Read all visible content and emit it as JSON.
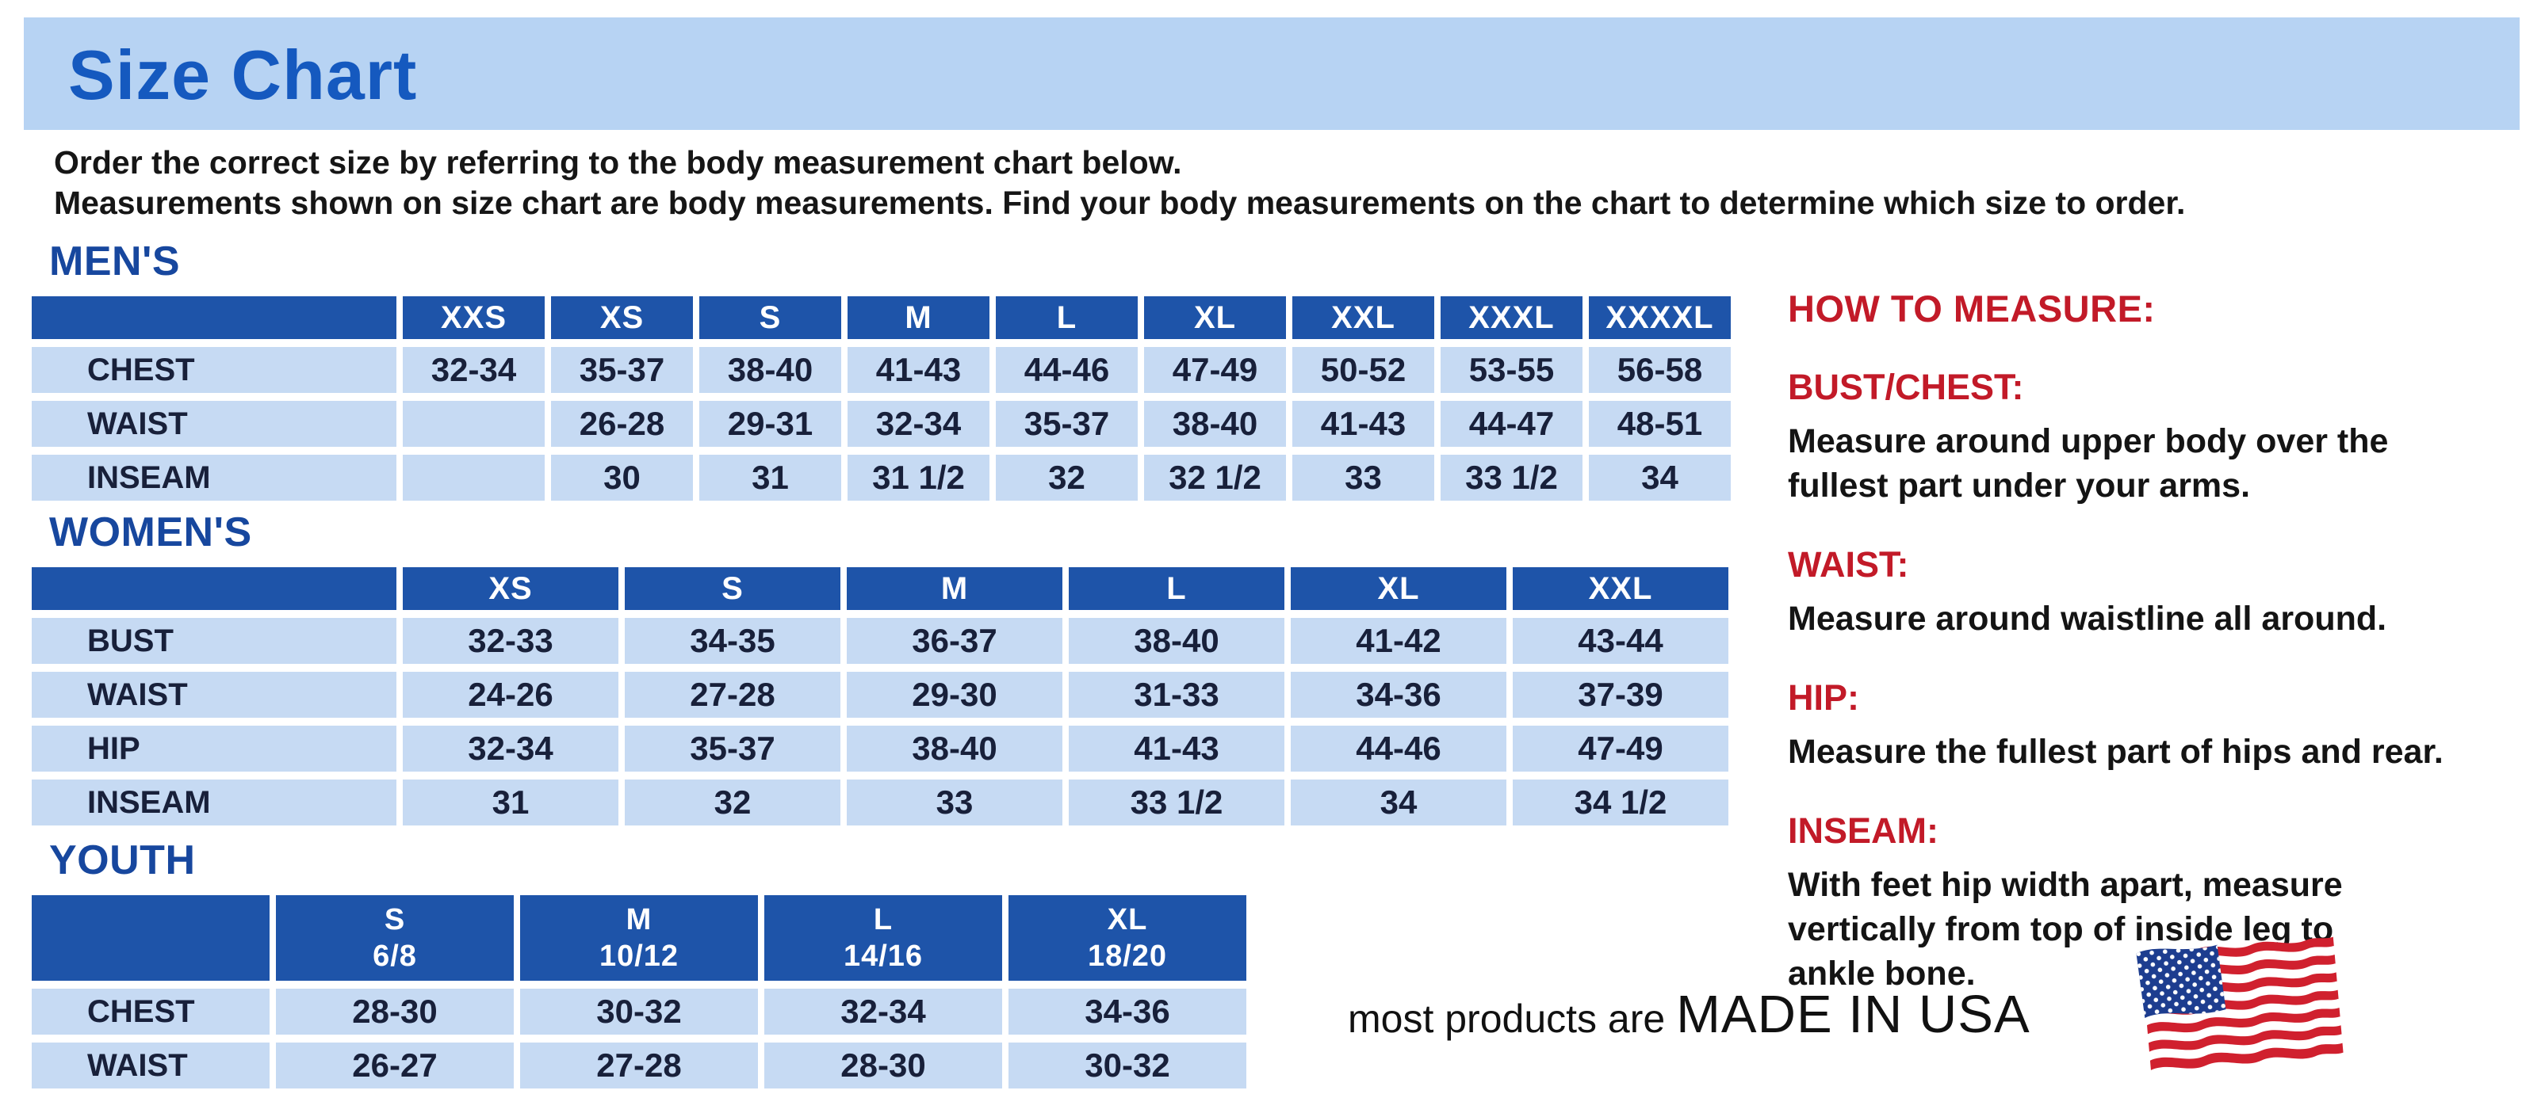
{
  "page": {
    "title": "Size Chart",
    "intro_line1": "Order the correct size by referring to the body measurement chart below.",
    "intro_line2": "Measurements shown on size chart are body measurements.  Find your body measurements on the chart to determine which size to order."
  },
  "colors": {
    "band_background": "#b7d3f3",
    "title_blue": "#1559bf",
    "section_heading_blue": "#17479e",
    "table_header_blue": "#1e54a9",
    "table_cell_blue": "#c6daf3",
    "accent_red": "#c21a28"
  },
  "tables": [
    {
      "heading": "MEN'S",
      "columns": [
        "",
        "XXS",
        "XS",
        "S",
        "M",
        "L",
        "XL",
        "XXL",
        "XXXL",
        "XXXXL"
      ],
      "rows": [
        {
          "label": "CHEST",
          "values": [
            "32-34",
            "35-37",
            "38-40",
            "41-43",
            "44-46",
            "47-49",
            "50-52",
            "53-55",
            "56-58"
          ]
        },
        {
          "label": "WAIST",
          "values": [
            "",
            "26-28",
            "29-31",
            "32-34",
            "35-37",
            "38-40",
            "41-43",
            "44-47",
            "48-51"
          ]
        },
        {
          "label": "INSEAM",
          "values": [
            "",
            "30",
            "31",
            "31 1/2",
            "32",
            "32 1/2",
            "33",
            "33 1/2",
            "34"
          ]
        }
      ]
    },
    {
      "heading": "WOMEN'S",
      "columns": [
        "",
        "XS",
        "S",
        "M",
        "L",
        "XL",
        "XXL"
      ],
      "rows": [
        {
          "label": "BUST",
          "values": [
            "32-33",
            "34-35",
            "36-37",
            "38-40",
            "41-42",
            "43-44"
          ]
        },
        {
          "label": "WAIST",
          "values": [
            "24-26",
            "27-28",
            "29-30",
            "31-33",
            "34-36",
            "37-39"
          ]
        },
        {
          "label": "HIP",
          "values": [
            "32-34",
            "35-37",
            "38-40",
            "41-43",
            "44-46",
            "47-49"
          ]
        },
        {
          "label": "INSEAM",
          "values": [
            "31",
            "32",
            "33",
            "33 1/2",
            "34",
            "34 1/2"
          ]
        }
      ]
    },
    {
      "heading": "YOUTH",
      "columns": [
        "",
        "S\n6/8",
        "M\n10/12",
        "L\n14/16",
        "XL\n18/20"
      ],
      "rows": [
        {
          "label": "CHEST",
          "values": [
            "28-30",
            "30-32",
            "32-34",
            "34-36"
          ]
        },
        {
          "label": "WAIST",
          "values": [
            "26-27",
            "27-28",
            "28-30",
            "30-32"
          ]
        }
      ]
    }
  ],
  "how_to_measure": {
    "heading": "HOW TO MEASURE:",
    "items": [
      {
        "term": "BUST/CHEST:",
        "desc": "Measure around upper body over the\nfullest part under your arms."
      },
      {
        "term": "WAIST:",
        "desc": "Measure around waistline all around."
      },
      {
        "term": "HIP:",
        "desc": "Measure the fullest part of hips and rear."
      },
      {
        "term": "INSEAM:",
        "desc": "With feet hip width apart, measure\nvertically from top of inside leg to\nankle bone."
      }
    ]
  },
  "footer": {
    "prefix": "most products are ",
    "emphasis": "MADE IN USA",
    "flag_icon": "us-flag-icon"
  }
}
